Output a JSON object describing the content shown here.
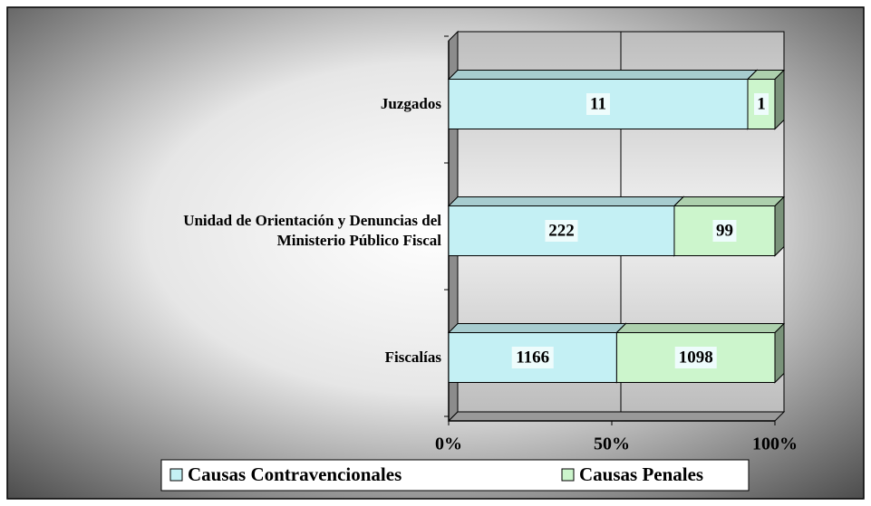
{
  "chart_data": {
    "type": "bar",
    "orientation": "horizontal",
    "stacking": "percent",
    "categories": [
      "Juzgados",
      "Unidad de Orientación y Denuncias del\nMinisterio Público Fiscal",
      "Fiscalías"
    ],
    "series": [
      {
        "name": "Causas Contravencionales",
        "color": "#c4f0f4",
        "values": [
          11,
          222,
          1166
        ]
      },
      {
        "name": "Causas Penales",
        "color": "#ccf5cc",
        "values": [
          1,
          99,
          1098
        ]
      }
    ],
    "xlim": [
      0,
      100
    ],
    "xticks": [
      {
        "value": 0,
        "label": "0%"
      },
      {
        "value": 50,
        "label": "50%"
      },
      {
        "value": 100,
        "label": "100%"
      }
    ],
    "grid": true,
    "legend": "bottom"
  }
}
